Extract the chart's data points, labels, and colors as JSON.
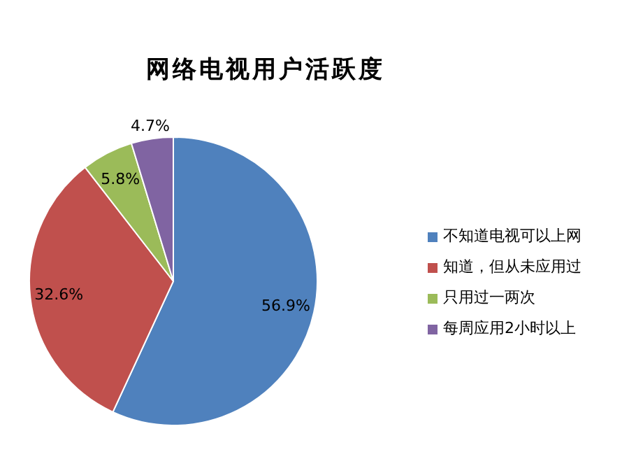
{
  "chart_data": {
    "type": "pie",
    "title": "网络电视用户活跃度",
    "categories": [
      "不知道电视可以上网",
      "知道，但从未应用过",
      "只用过一两次",
      "每周应用2小时以上"
    ],
    "values": [
      56.9,
      32.6,
      5.8,
      4.7
    ],
    "value_labels": [
      "56.9%",
      "32.6%",
      "5.8%",
      "4.7%"
    ],
    "colors": [
      "#4f81bd",
      "#c0504d",
      "#9bbb59",
      "#8064a2"
    ],
    "legend": "right"
  }
}
